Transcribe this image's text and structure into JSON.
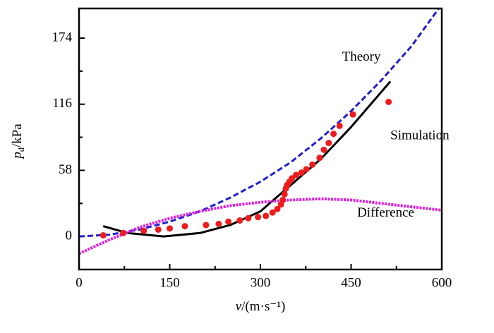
{
  "chart_data": {
    "type": "line",
    "xlabel": [
      "v",
      "/(m·s⁻¹)"
    ],
    "ylabel": [
      "p",
      "d",
      "/kPa"
    ],
    "xlim": [
      0,
      600
    ],
    "xticks": [
      0,
      150,
      300,
      450,
      600
    ],
    "ylim": [
      -29,
      200
    ],
    "yticks": [
      0,
      58,
      116,
      174
    ],
    "series": [
      {
        "name": "Theory",
        "kind": "dashed",
        "color": "#1f1fd0",
        "x": [
          0,
          50,
          100,
          150,
          200,
          250,
          300,
          350,
          400,
          450,
          500,
          550,
          595
        ],
        "values": [
          0,
          1.5,
          6,
          13,
          22,
          34,
          48,
          65,
          86,
          110,
          137,
          167,
          200
        ]
      },
      {
        "name": "Simulation",
        "kind": "solid",
        "color": "#000000",
        "x": [
          40,
          80,
          140,
          200,
          250,
          300,
          350,
          400,
          450,
          515
        ],
        "values": [
          9,
          3,
          0,
          3,
          10,
          22,
          45,
          68,
          96,
          136
        ]
      },
      {
        "name": "Difference",
        "kind": "dotted",
        "color": "#e020e0",
        "x": [
          0,
          50,
          100,
          150,
          200,
          250,
          300,
          350,
          400,
          450,
          500,
          550,
          600
        ],
        "values": [
          -15,
          -3,
          8,
          16,
          22,
          27,
          30,
          32,
          33,
          32,
          29,
          26,
          23
        ]
      },
      {
        "name": "Simulation points",
        "kind": "scatter",
        "color": "#ee1c1c",
        "x": [
          40,
          73,
          107,
          131,
          150,
          175,
          210,
          231,
          247,
          266,
          280,
          296,
          309,
          320,
          328,
          334,
          337,
          340,
          342,
          344,
          348,
          352,
          359,
          368,
          376,
          386,
          398,
          405,
          413,
          421,
          431,
          453,
          512
        ],
        "values": [
          1,
          3,
          5,
          6,
          7,
          9,
          10,
          11,
          13,
          14,
          16,
          17,
          18,
          21,
          24,
          28,
          32,
          37,
          42,
          45,
          48,
          51,
          54,
          56,
          59,
          63,
          69,
          76,
          82,
          90,
          97,
          107,
          118
        ]
      }
    ],
    "annotations": [
      {
        "text": "Theory",
        "x": 435,
        "y": 157
      },
      {
        "text": "Simulation",
        "x": 515,
        "y": 88
      },
      {
        "text": "Difference",
        "x": 460,
        "y": 20
      }
    ]
  }
}
